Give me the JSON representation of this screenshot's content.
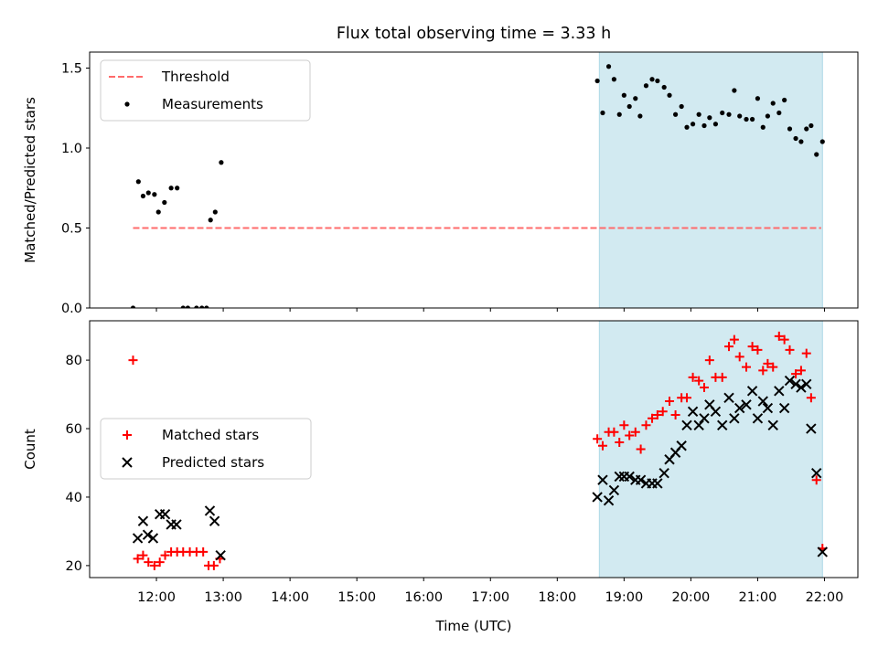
{
  "chart_data": {
    "title": "Flux total observing time = 3.33 h",
    "xlabel": "Time (UTC)",
    "x_unit": "hours (UTC)",
    "xlim": [
      11.0,
      22.5
    ],
    "xticks": [
      12,
      13,
      14,
      15,
      16,
      17,
      18,
      19,
      20,
      21,
      22
    ],
    "xtick_labels": [
      "12:00",
      "13:00",
      "14:00",
      "15:00",
      "16:00",
      "17:00",
      "18:00",
      "19:00",
      "20:00",
      "21:00",
      "22:00"
    ],
    "shaded_region": {
      "x": [
        18.63,
        21.97
      ],
      "color": "#add8e6"
    },
    "panels": [
      {
        "type": "scatter",
        "ylabel": "Matched/Predicted stars",
        "ylim": [
          0.0,
          1.6
        ],
        "yticks": [
          0.0,
          0.5,
          1.0,
          1.5
        ],
        "ytick_labels": [
          "0.0",
          "0.5",
          "1.0",
          "1.5"
        ],
        "legend": {
          "location": "upper left",
          "entries": [
            "Threshold",
            "Measurements"
          ]
        },
        "series": [
          {
            "name": "Threshold",
            "style": "dashed-line",
            "color": "#ff6b6b",
            "x": [
              11.65,
              21.95
            ],
            "y": [
              0.5,
              0.5
            ]
          },
          {
            "name": "Measurements",
            "style": "dot",
            "color": "#000000",
            "x": [
              11.65,
              11.73,
              11.8,
              11.88,
              11.97,
              12.03,
              12.12,
              12.22,
              12.31,
              12.4,
              12.47,
              12.6,
              12.68,
              12.75,
              12.81,
              12.88,
              12.97,
              18.6,
              18.68,
              18.77,
              18.85,
              18.93,
              19.0,
              19.08,
              19.17,
              19.24,
              19.33,
              19.42,
              19.5,
              19.6,
              19.68,
              19.77,
              19.86,
              19.94,
              20.03,
              20.12,
              20.2,
              20.28,
              20.37,
              20.47,
              20.57,
              20.65,
              20.73,
              20.83,
              20.92,
              21.0,
              21.08,
              21.15,
              21.23,
              21.32,
              21.4,
              21.48,
              21.57,
              21.65,
              21.73,
              21.8,
              21.88,
              21.97
            ],
            "y": [
              0.0,
              0.79,
              0.7,
              0.72,
              0.71,
              0.6,
              0.66,
              0.75,
              0.75,
              0.0,
              0.0,
              0.0,
              0.0,
              0.0,
              0.55,
              0.6,
              0.91,
              1.42,
              1.22,
              1.51,
              1.43,
              1.21,
              1.33,
              1.26,
              1.31,
              1.2,
              1.39,
              1.43,
              1.42,
              1.38,
              1.33,
              1.21,
              1.26,
              1.13,
              1.15,
              1.21,
              1.14,
              1.19,
              1.15,
              1.22,
              1.21,
              1.36,
              1.2,
              1.18,
              1.18,
              1.31,
              1.13,
              1.2,
              1.28,
              1.22,
              1.3,
              1.12,
              1.06,
              1.04,
              1.12,
              1.14,
              0.96,
              1.04
            ]
          }
        ]
      },
      {
        "type": "scatter",
        "ylabel": "Count",
        "ylim": [
          16.5,
          91.5
        ],
        "yticks": [
          20,
          40,
          60,
          80
        ],
        "ytick_labels": [
          "20",
          "40",
          "60",
          "80"
        ],
        "legend": {
          "location": "center left",
          "entries": [
            "Matched stars",
            "Predicted stars"
          ]
        },
        "series": [
          {
            "name": "Matched stars",
            "marker": "plus",
            "color": "#ff0000",
            "x": [
              11.65,
              11.72,
              11.8,
              11.88,
              11.97,
              12.05,
              12.13,
              12.22,
              12.31,
              12.4,
              12.5,
              12.6,
              12.7,
              12.78,
              12.86,
              12.95,
              18.6,
              18.68,
              18.77,
              18.85,
              18.93,
              19.0,
              19.08,
              19.17,
              19.25,
              19.33,
              19.42,
              19.5,
              19.58,
              19.68,
              19.77,
              19.86,
              19.94,
              20.03,
              20.12,
              20.2,
              20.28,
              20.37,
              20.47,
              20.57,
              20.65,
              20.73,
              20.83,
              20.92,
              21.0,
              21.08,
              21.15,
              21.23,
              21.32,
              21.4,
              21.48,
              21.57,
              21.65,
              21.73,
              21.8,
              21.88,
              21.97
            ],
            "y": [
              80,
              22,
              23,
              21,
              20,
              21,
              23,
              24,
              24,
              24,
              24,
              24,
              24,
              20,
              20,
              22,
              57,
              55,
              59,
              59,
              56,
              61,
              58,
              59,
              54,
              61,
              63,
              64,
              65,
              68,
              64,
              69,
              69,
              75,
              74,
              72,
              80,
              75,
              75,
              84,
              86,
              81,
              78,
              84,
              83,
              77,
              79,
              78,
              87,
              86,
              83,
              76,
              77,
              82,
              69,
              45,
              25
            ]
          },
          {
            "name": "Predicted stars",
            "marker": "x",
            "color": "#000000",
            "x": [
              11.72,
              11.8,
              11.87,
              11.95,
              12.05,
              12.13,
              12.22,
              12.3,
              12.8,
              12.87,
              12.96,
              18.6,
              18.68,
              18.77,
              18.85,
              18.93,
              19.0,
              19.08,
              19.17,
              19.25,
              19.33,
              19.42,
              19.5,
              19.6,
              19.68,
              19.77,
              19.86,
              19.94,
              20.03,
              20.12,
              20.2,
              20.28,
              20.37,
              20.47,
              20.57,
              20.65,
              20.73,
              20.83,
              20.92,
              21.0,
              21.08,
              21.15,
              21.23,
              21.32,
              21.4,
              21.48,
              21.57,
              21.65,
              21.73,
              21.8,
              21.88,
              21.97
            ],
            "y": [
              28,
              33,
              29,
              28,
              35,
              35,
              32,
              32,
              36,
              33,
              23,
              40,
              45,
              39,
              42,
              46,
              46,
              46,
              45,
              45,
              44,
              44,
              44,
              47,
              51,
              53,
              55,
              61,
              65,
              61,
              63,
              67,
              65,
              61,
              69,
              63,
              66,
              67,
              71,
              63,
              68,
              66,
              61,
              71,
              66,
              74,
              73,
              72,
              73,
              60,
              47,
              24
            ]
          }
        ]
      }
    ]
  }
}
